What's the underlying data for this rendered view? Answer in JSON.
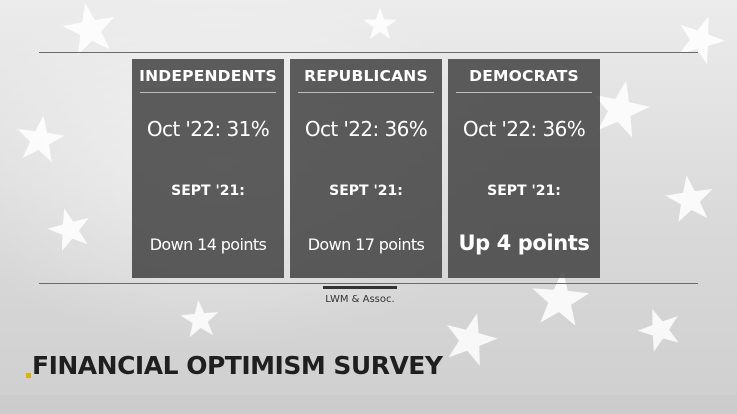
{
  "source": "LWM & Assoc.",
  "title": "FINANCIAL OPTIMISM SURVEY",
  "panels": [
    {
      "group": "INDEPENDENTS",
      "current": "Oct '22: 31%",
      "previous_label": "SEPT '21:",
      "change": "Down 14 points"
    },
    {
      "group": "REPUBLICANS",
      "current": "Oct '22: 36%",
      "previous_label": "SEPT '21:",
      "change": "Down 17 points"
    },
    {
      "group": "DEMOCRATS",
      "current": "Oct '22: 36%",
      "previous_label": "SEPT '21:",
      "change": "Up 4 points"
    }
  ],
  "colors": {
    "panel": "#3a3a3a",
    "accent": "#e0b100",
    "title": "#1f1f1f"
  },
  "icons": [
    "star-icon"
  ]
}
